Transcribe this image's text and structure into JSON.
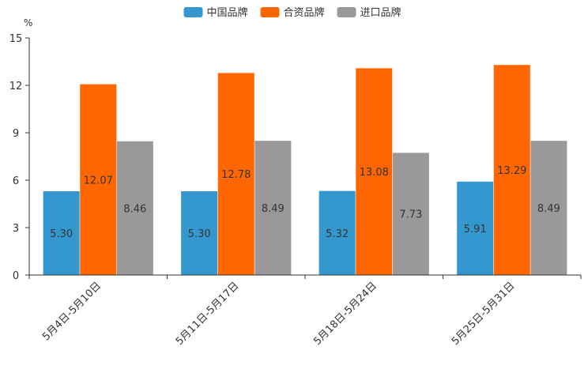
{
  "chart_data": {
    "type": "bar",
    "unit": "%",
    "categories": [
      "5月4日-5月10日",
      "5月11日-5月17日",
      "5月18日-5月24日",
      "5月25日-5月31日"
    ],
    "series": [
      {
        "name": "中国品牌",
        "color": "#3498cf",
        "values": [
          5.3,
          5.3,
          5.32,
          5.91
        ]
      },
      {
        "name": "合资品牌",
        "color": "#ff6600",
        "values": [
          12.07,
          12.78,
          13.08,
          13.29
        ]
      },
      {
        "name": "进口品牌",
        "color": "#999999",
        "values": [
          8.46,
          8.49,
          7.73,
          8.49
        ]
      }
    ],
    "ylim": [
      0,
      15
    ],
    "yticks": [
      0,
      3,
      6,
      9,
      12,
      15
    ],
    "legend_position": "top-center",
    "grid": false
  }
}
